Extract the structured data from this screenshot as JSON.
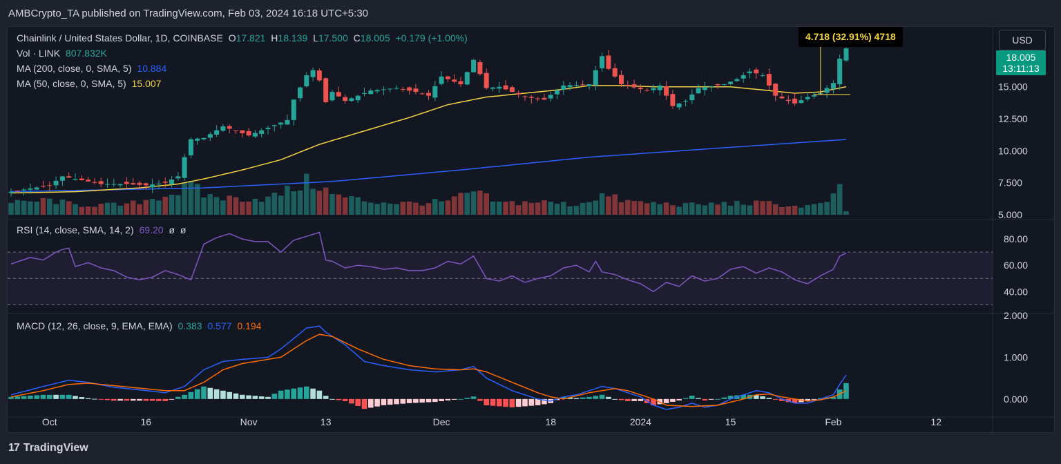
{
  "header": {
    "published_text": "AMBCrypto_TA published on TradingView.com, Feb 03, 2024 16:18 UTC+5:30"
  },
  "footer": {
    "brand": "TradingView",
    "logo_glyph": "17"
  },
  "symbol_legend": {
    "title": "Chainlink / United States Dollar, 1D, COINBASE",
    "o_label": "O",
    "o": "17.821",
    "h_label": "H",
    "h": "18.139",
    "l_label": "L",
    "l": "17.500",
    "c_label": "C",
    "c": "18.005",
    "change": "+0.179 (+1.00%)"
  },
  "indicators": {
    "vol": {
      "label": "Vol · LINK",
      "value": "807.832K"
    },
    "ma200": {
      "label": "MA (200, close, 0, SMA, 5)",
      "value": "10.884",
      "color": "#2962ff"
    },
    "ma50": {
      "label": "MA (50, close, 0, SMA, 5)",
      "value": "15.007",
      "color": "#f5d442"
    },
    "rsi": {
      "label": "RSI (14, close, SMA, 14, 2)",
      "value": "69.20",
      "extra1": "ø",
      "extra2": "ø",
      "color": "#7e57c2"
    },
    "macd": {
      "label": "MACD (12, 26, close, 9, EMA, EMA)",
      "v1": "0.383",
      "v2": "0.577",
      "v3": "0.194"
    }
  },
  "controls": {
    "currency_button": "USD"
  },
  "price_labels": {
    "current_top": "18.005",
    "countdown": "13:11:13"
  },
  "measure_label": "4.718 (32.91%) 4718",
  "colors": {
    "up": "#26a69a",
    "down": "#ef5350",
    "background": "#131722",
    "grid": "#2a2e39"
  },
  "chart_data": {
    "type": "candlestick",
    "symbol": "LINK/USD",
    "interval": "1D",
    "price_axis": {
      "ticks": [
        "5.000",
        "7.500",
        "10.000",
        "12.500",
        "15.000"
      ],
      "ylim": [
        5,
        18.6
      ]
    },
    "rsi_axis": {
      "ticks": [
        "40.00",
        "60.00",
        "80.00"
      ],
      "ylim": [
        25,
        90
      ],
      "bands": [
        30,
        50,
        70
      ]
    },
    "macd_axis": {
      "ticks": [
        "0.000",
        "1.000",
        "2.000"
      ],
      "ylim": [
        -0.35,
        2.0
      ]
    },
    "x_axis": {
      "labels": [
        "Oct",
        "16",
        "Nov",
        "13",
        "Dec",
        "18",
        "2024",
        "15",
        "Feb",
        "12"
      ],
      "label_day_index": [
        6,
        21,
        37,
        49,
        67,
        84,
        98,
        112,
        128,
        144
      ]
    },
    "days": 131,
    "anchors": {
      "close": [
        [
          0,
          6.8
        ],
        [
          6,
          7.3
        ],
        [
          8,
          8.0
        ],
        [
          12,
          7.6
        ],
        [
          14,
          7.4
        ],
        [
          18,
          7.4
        ],
        [
          21,
          7.3
        ],
        [
          24,
          7.5
        ],
        [
          26,
          8.0
        ],
        [
          27,
          9.5
        ],
        [
          28,
          10.9
        ],
        [
          30,
          11.0
        ],
        [
          33,
          11.9
        ],
        [
          37,
          11.2
        ],
        [
          40,
          11.8
        ],
        [
          43,
          12.4
        ],
        [
          44,
          14.0
        ],
        [
          46,
          15.9
        ],
        [
          47,
          16.3
        ],
        [
          48,
          15.5
        ],
        [
          49,
          13.8
        ],
        [
          50,
          14.6
        ],
        [
          52,
          13.9
        ],
        [
          56,
          14.7
        ],
        [
          60,
          14.9
        ],
        [
          63,
          14.6
        ],
        [
          65,
          14.3
        ],
        [
          67,
          15.8
        ],
        [
          70,
          15.2
        ],
        [
          72,
          17.1
        ],
        [
          74,
          14.9
        ],
        [
          76,
          15.0
        ],
        [
          80,
          14.2
        ],
        [
          83,
          14.0
        ],
        [
          86,
          15.1
        ],
        [
          90,
          15.2
        ],
        [
          92,
          17.4
        ],
        [
          93,
          16.4
        ],
        [
          95,
          15.2
        ],
        [
          99,
          14.7
        ],
        [
          101,
          15.1
        ],
        [
          103,
          13.5
        ],
        [
          105,
          13.9
        ],
        [
          107,
          14.9
        ],
        [
          111,
          15.2
        ],
        [
          113,
          15.6
        ],
        [
          115,
          16.2
        ],
        [
          117,
          15.9
        ],
        [
          119,
          14.3
        ],
        [
          122,
          13.7
        ],
        [
          124,
          14.2
        ],
        [
          126,
          14.5
        ],
        [
          128,
          15.3
        ],
        [
          129,
          17.2
        ],
        [
          130,
          18.0
        ]
      ],
      "rsi": [
        [
          0,
          61
        ],
        [
          3,
          66
        ],
        [
          5,
          64
        ],
        [
          7,
          70
        ],
        [
          8,
          72
        ],
        [
          9,
          73
        ],
        [
          10,
          59
        ],
        [
          12,
          62
        ],
        [
          14,
          58
        ],
        [
          16,
          56
        ],
        [
          18,
          51
        ],
        [
          20,
          49
        ],
        [
          22,
          51
        ],
        [
          24,
          56
        ],
        [
          26,
          53
        ],
        [
          28,
          49
        ],
        [
          30,
          76
        ],
        [
          32,
          81
        ],
        [
          34,
          84
        ],
        [
          36,
          80
        ],
        [
          38,
          78
        ],
        [
          40,
          78
        ],
        [
          42,
          70
        ],
        [
          44,
          79
        ],
        [
          46,
          82
        ],
        [
          48,
          85
        ],
        [
          49,
          64
        ],
        [
          50,
          63
        ],
        [
          52,
          58
        ],
        [
          54,
          60
        ],
        [
          56,
          59
        ],
        [
          58,
          57
        ],
        [
          60,
          58
        ],
        [
          62,
          56
        ],
        [
          64,
          56
        ],
        [
          66,
          58
        ],
        [
          68,
          63
        ],
        [
          70,
          61
        ],
        [
          72,
          67
        ],
        [
          74,
          50
        ],
        [
          76,
          48
        ],
        [
          78,
          52
        ],
        [
          80,
          47
        ],
        [
          82,
          50
        ],
        [
          84,
          52
        ],
        [
          86,
          58
        ],
        [
          88,
          60
        ],
        [
          90,
          55
        ],
        [
          91,
          63
        ],
        [
          92,
          55
        ],
        [
          94,
          53
        ],
        [
          96,
          49
        ],
        [
          98,
          46
        ],
        [
          100,
          40
        ],
        [
          102,
          47
        ],
        [
          104,
          44
        ],
        [
          106,
          52
        ],
        [
          108,
          48
        ],
        [
          110,
          50
        ],
        [
          112,
          57
        ],
        [
          114,
          59
        ],
        [
          116,
          54
        ],
        [
          118,
          58
        ],
        [
          120,
          55
        ],
        [
          122,
          49
        ],
        [
          124,
          46
        ],
        [
          126,
          52
        ],
        [
          128,
          57
        ],
        [
          129,
          67
        ],
        [
          130,
          69.2
        ]
      ],
      "macd_line": [
        [
          0,
          0.1
        ],
        [
          5,
          0.3
        ],
        [
          9,
          0.45
        ],
        [
          12,
          0.4
        ],
        [
          16,
          0.28
        ],
        [
          20,
          0.22
        ],
        [
          24,
          0.15
        ],
        [
          27,
          0.3
        ],
        [
          30,
          0.7
        ],
        [
          33,
          0.9
        ],
        [
          36,
          0.95
        ],
        [
          40,
          1.0
        ],
        [
          42,
          1.2
        ],
        [
          46,
          1.7
        ],
        [
          48,
          1.75
        ],
        [
          49,
          1.6
        ],
        [
          52,
          1.3
        ],
        [
          55,
          0.9
        ],
        [
          58,
          0.8
        ],
        [
          62,
          0.7
        ],
        [
          66,
          0.65
        ],
        [
          70,
          0.7
        ],
        [
          72,
          0.78
        ],
        [
          74,
          0.5
        ],
        [
          78,
          0.2
        ],
        [
          82,
          0.0
        ],
        [
          84,
          -0.05
        ],
        [
          86,
          0.05
        ],
        [
          88,
          0.1
        ],
        [
          92,
          0.3
        ],
        [
          94,
          0.25
        ],
        [
          96,
          0.15
        ],
        [
          98,
          0.05
        ],
        [
          100,
          -0.15
        ],
        [
          102,
          -0.25
        ],
        [
          104,
          -0.2
        ],
        [
          106,
          -0.1
        ],
        [
          108,
          -0.2
        ],
        [
          110,
          -0.15
        ],
        [
          112,
          0.0
        ],
        [
          114,
          0.1
        ],
        [
          116,
          0.2
        ],
        [
          118,
          0.15
        ],
        [
          120,
          0.0
        ],
        [
          122,
          -0.1
        ],
        [
          124,
          -0.1
        ],
        [
          126,
          0.0
        ],
        [
          128,
          0.1
        ],
        [
          129,
          0.35
        ],
        [
          130,
          0.577
        ]
      ],
      "macd_signal": [
        [
          0,
          0.05
        ],
        [
          5,
          0.2
        ],
        [
          9,
          0.35
        ],
        [
          12,
          0.38
        ],
        [
          16,
          0.32
        ],
        [
          20,
          0.26
        ],
        [
          24,
          0.2
        ],
        [
          27,
          0.2
        ],
        [
          30,
          0.4
        ],
        [
          33,
          0.7
        ],
        [
          36,
          0.85
        ],
        [
          40,
          0.95
        ],
        [
          42,
          1.0
        ],
        [
          46,
          1.4
        ],
        [
          48,
          1.55
        ],
        [
          50,
          1.5
        ],
        [
          54,
          1.2
        ],
        [
          58,
          0.95
        ],
        [
          62,
          0.8
        ],
        [
          66,
          0.72
        ],
        [
          70,
          0.7
        ],
        [
          72,
          0.72
        ],
        [
          74,
          0.65
        ],
        [
          78,
          0.4
        ],
        [
          82,
          0.15
        ],
        [
          84,
          0.05
        ],
        [
          86,
          0.0
        ],
        [
          90,
          0.15
        ],
        [
          94,
          0.25
        ],
        [
          96,
          0.2
        ],
        [
          100,
          0.0
        ],
        [
          102,
          -0.15
        ],
        [
          106,
          -0.18
        ],
        [
          110,
          -0.15
        ],
        [
          114,
          0.0
        ],
        [
          116,
          0.1
        ],
        [
          118,
          0.12
        ],
        [
          120,
          0.05
        ],
        [
          124,
          -0.05
        ],
        [
          126,
          -0.02
        ],
        [
          128,
          0.05
        ],
        [
          130,
          0.194
        ]
      ],
      "ma50": [
        [
          0,
          6.7
        ],
        [
          10,
          6.8
        ],
        [
          20,
          7.1
        ],
        [
          26,
          7.4
        ],
        [
          30,
          7.8
        ],
        [
          36,
          8.5
        ],
        [
          42,
          9.3
        ],
        [
          48,
          10.5
        ],
        [
          56,
          11.7
        ],
        [
          62,
          12.6
        ],
        [
          68,
          13.6
        ],
        [
          74,
          14.2
        ],
        [
          80,
          14.5
        ],
        [
          86,
          14.8
        ],
        [
          90,
          15.1
        ],
        [
          95,
          15.1
        ],
        [
          100,
          15.0
        ],
        [
          106,
          15.0
        ],
        [
          112,
          15.0
        ],
        [
          118,
          14.7
        ],
        [
          122,
          14.5
        ],
        [
          126,
          14.6
        ],
        [
          130,
          15.007
        ]
      ],
      "ma200": [
        [
          0,
          6.8
        ],
        [
          30,
          7.1
        ],
        [
          50,
          7.6
        ],
        [
          70,
          8.5
        ],
        [
          90,
          9.5
        ],
        [
          110,
          10.2
        ],
        [
          130,
          10.884
        ]
      ],
      "volume_relative": [
        [
          0,
          0.35
        ],
        [
          6,
          0.45
        ],
        [
          10,
          0.3
        ],
        [
          18,
          0.3
        ],
        [
          26,
          0.7
        ],
        [
          28,
          0.9
        ],
        [
          30,
          0.6
        ],
        [
          34,
          0.5
        ],
        [
          40,
          0.5
        ],
        [
          44,
          0.8
        ],
        [
          46,
          1.0
        ],
        [
          48,
          0.9
        ],
        [
          50,
          0.6
        ],
        [
          56,
          0.4
        ],
        [
          62,
          0.35
        ],
        [
          68,
          0.4
        ],
        [
          72,
          0.7
        ],
        [
          76,
          0.35
        ],
        [
          82,
          0.4
        ],
        [
          88,
          0.3
        ],
        [
          92,
          0.6
        ],
        [
          96,
          0.4
        ],
        [
          100,
          0.35
        ],
        [
          106,
          0.3
        ],
        [
          112,
          0.35
        ],
        [
          118,
          0.35
        ],
        [
          122,
          0.25
        ],
        [
          126,
          0.3
        ],
        [
          128,
          0.55
        ],
        [
          129,
          0.75
        ],
        [
          130,
          0.1
        ]
      ]
    }
  }
}
